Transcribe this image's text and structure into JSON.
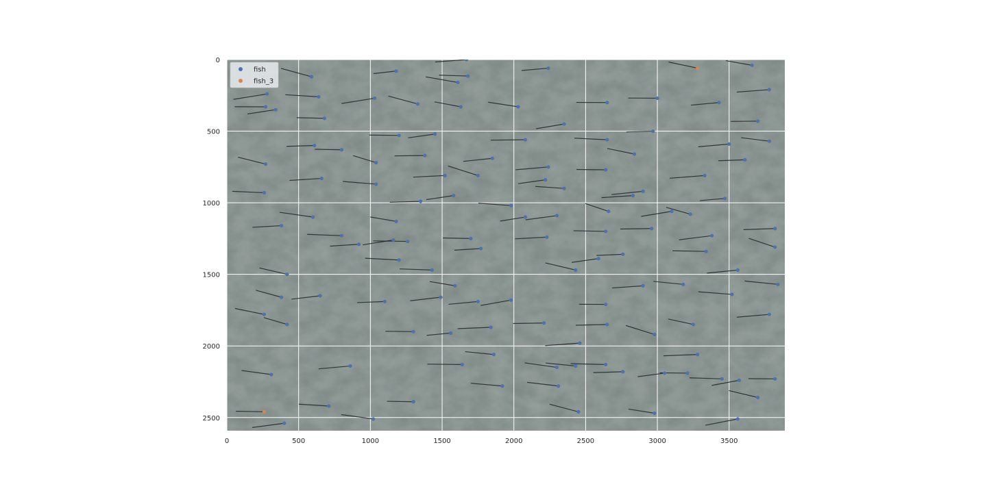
{
  "chart_data": {
    "type": "scatter",
    "title": "",
    "xlabel": "",
    "ylabel": "",
    "xlim": [
      0,
      3888
    ],
    "ylim": [
      2592,
      0
    ],
    "y_inverted": true,
    "background": "underwater photo of a school of fish (grey-green water texture)",
    "grid": true,
    "legend_position": "top-left",
    "x_ticks": [
      0,
      500,
      1000,
      1500,
      2000,
      2500,
      3000,
      3500
    ],
    "y_ticks": [
      0,
      500,
      1000,
      1500,
      2000,
      2500
    ],
    "x_tick_labels": [
      "0",
      "500",
      "1000",
      "1500",
      "2000",
      "2500",
      "3000",
      "3500"
    ],
    "y_tick_labels": [
      "0",
      "500",
      "1000",
      "1500",
      "2000",
      "2500"
    ],
    "series": [
      {
        "name": "fish",
        "color": "#4c72b0",
        "points": [
          [
            590,
            120
          ],
          [
            1180,
            80
          ],
          [
            1670,
            0
          ],
          [
            1680,
            115
          ],
          [
            1610,
            160
          ],
          [
            2240,
            60
          ],
          [
            3660,
            40
          ],
          [
            3780,
            210
          ],
          [
            280,
            240
          ],
          [
            270,
            330
          ],
          [
            340,
            350
          ],
          [
            640,
            260
          ],
          [
            1030,
            270
          ],
          [
            1330,
            310
          ],
          [
            1630,
            330
          ],
          [
            2030,
            330
          ],
          [
            2650,
            300
          ],
          [
            3000,
            270
          ],
          [
            3430,
            300
          ],
          [
            680,
            410
          ],
          [
            2350,
            450
          ],
          [
            2970,
            500
          ],
          [
            3700,
            430
          ],
          [
            610,
            600
          ],
          [
            800,
            630
          ],
          [
            1200,
            530
          ],
          [
            1450,
            520
          ],
          [
            2080,
            560
          ],
          [
            2650,
            560
          ],
          [
            2840,
            660
          ],
          [
            3500,
            590
          ],
          [
            3780,
            570
          ],
          [
            270,
            730
          ],
          [
            1040,
            720
          ],
          [
            1380,
            670
          ],
          [
            1850,
            690
          ],
          [
            2240,
            750
          ],
          [
            2640,
            770
          ],
          [
            3330,
            810
          ],
          [
            3610,
            700
          ],
          [
            660,
            830
          ],
          [
            1040,
            870
          ],
          [
            1520,
            810
          ],
          [
            1750,
            810
          ],
          [
            2220,
            840
          ],
          [
            2350,
            900
          ],
          [
            2900,
            920
          ],
          [
            260,
            930
          ],
          [
            1580,
            950
          ],
          [
            1350,
            990
          ],
          [
            1980,
            1020
          ],
          [
            2660,
            1060
          ],
          [
            2830,
            950
          ],
          [
            3100,
            1060
          ],
          [
            3230,
            1080
          ],
          [
            3470,
            970
          ],
          [
            380,
            1160
          ],
          [
            600,
            1100
          ],
          [
            1180,
            1130
          ],
          [
            2080,
            1100
          ],
          [
            2300,
            1090
          ],
          [
            2960,
            1180
          ],
          [
            2640,
            1200
          ],
          [
            2230,
            1240
          ],
          [
            3380,
            1230
          ],
          [
            3820,
            1180
          ],
          [
            800,
            1230
          ],
          [
            920,
            1290
          ],
          [
            1160,
            1260
          ],
          [
            1260,
            1270
          ],
          [
            1700,
            1250
          ],
          [
            1770,
            1320
          ],
          [
            2590,
            1390
          ],
          [
            2760,
            1360
          ],
          [
            3340,
            1340
          ],
          [
            3820,
            1310
          ],
          [
            1200,
            1400
          ],
          [
            1590,
            1580
          ],
          [
            1430,
            1470
          ],
          [
            2430,
            1470
          ],
          [
            420,
            1500
          ],
          [
            3560,
            1470
          ],
          [
            380,
            1660
          ],
          [
            650,
            1650
          ],
          [
            1490,
            1660
          ],
          [
            1750,
            1690
          ],
          [
            1980,
            1680
          ],
          [
            1100,
            1690
          ],
          [
            2640,
            1710
          ],
          [
            2900,
            1580
          ],
          [
            3180,
            1570
          ],
          [
            3520,
            1640
          ],
          [
            3840,
            1570
          ],
          [
            260,
            1780
          ],
          [
            420,
            1850
          ],
          [
            2210,
            1840
          ],
          [
            2650,
            1850
          ],
          [
            3250,
            1850
          ],
          [
            3780,
            1780
          ],
          [
            1300,
            1900
          ],
          [
            1560,
            1910
          ],
          [
            1840,
            1870
          ],
          [
            1860,
            2060
          ],
          [
            2460,
            1980
          ],
          [
            2980,
            1920
          ],
          [
            3280,
            2060
          ],
          [
            310,
            2200
          ],
          [
            860,
            2140
          ],
          [
            1640,
            2130
          ],
          [
            2300,
            2150
          ],
          [
            2430,
            2140
          ],
          [
            2640,
            2130
          ],
          [
            3050,
            2190
          ],
          [
            3210,
            2190
          ],
          [
            3450,
            2230
          ],
          [
            3570,
            2240
          ],
          [
            3820,
            2230
          ],
          [
            1920,
            2280
          ],
          [
            2310,
            2280
          ],
          [
            2760,
            2180
          ],
          [
            710,
            2420
          ],
          [
            1300,
            2390
          ],
          [
            1020,
            2510
          ],
          [
            400,
            2540
          ],
          [
            2450,
            2460
          ],
          [
            2980,
            2470
          ],
          [
            3560,
            2510
          ],
          [
            3700,
            2360
          ]
        ]
      },
      {
        "name": "fish_3",
        "color": "#dd8452",
        "points": [
          [
            3280,
            60
          ],
          [
            260,
            2460
          ]
        ]
      }
    ],
    "line_segments_note": "each fish has a dark line drawn from its keypoint toward the tail"
  }
}
